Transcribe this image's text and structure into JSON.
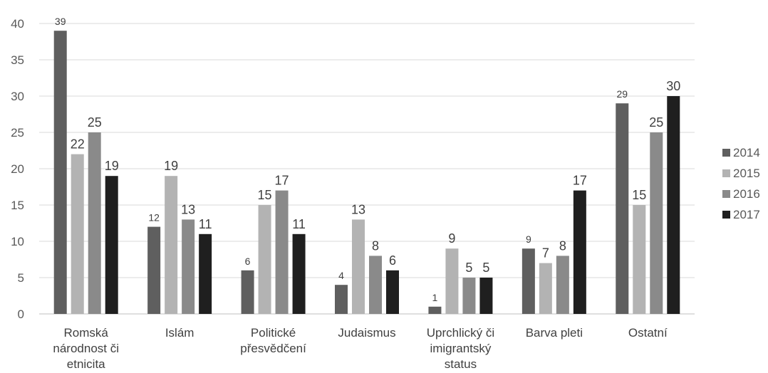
{
  "chart_data": {
    "type": "bar",
    "categories": [
      [
        "Romská",
        "národnost či",
        "etnicita"
      ],
      [
        "Islám"
      ],
      [
        "Politické",
        "přesvědčení"
      ],
      [
        "Judaismus"
      ],
      [
        "Uprchlický či",
        "imigrantský",
        "status"
      ],
      [
        "Barva pleti"
      ],
      [
        "Ostatní"
      ]
    ],
    "series": [
      {
        "name": "2014",
        "color": "#5f5f5f",
        "values": [
          39,
          12,
          6,
          4,
          1,
          9,
          29
        ]
      },
      {
        "name": "2015",
        "color": "#b3b3b3",
        "values": [
          22,
          19,
          15,
          13,
          9,
          7,
          15
        ]
      },
      {
        "name": "2016",
        "color": "#8a8a8a",
        "values": [
          25,
          13,
          17,
          8,
          5,
          8,
          25
        ]
      },
      {
        "name": "2017",
        "color": "#1f1f1f",
        "values": [
          19,
          11,
          11,
          6,
          5,
          17,
          30
        ]
      }
    ],
    "y_ticks": [
      "0",
      "5",
      "10",
      "15",
      "20",
      "25",
      "30",
      "35",
      "40"
    ],
    "ylim": [
      0,
      40
    ],
    "grid": true,
    "legend_position": "right",
    "title": "",
    "xlabel": "",
    "ylabel": ""
  }
}
